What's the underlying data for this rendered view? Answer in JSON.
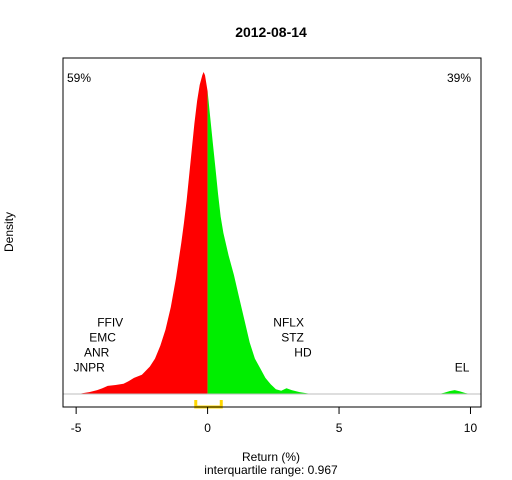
{
  "chart_data": {
    "type": "area",
    "title": "2012-08-14",
    "xlabel": "Return (%)",
    "ylabel": "Density",
    "subtitle": "interquartile range: 0.967",
    "xlim": [
      -5.5,
      10.4
    ],
    "ylim": [
      0,
      1.0
    ],
    "x_ticks": [
      -5,
      0,
      5,
      10
    ],
    "x_tick_labels": [
      "-5",
      "0",
      "5",
      "10"
    ],
    "split_at": 0,
    "density": {
      "x": [
        -4.8,
        -4.5,
        -4.2,
        -4.0,
        -3.8,
        -3.5,
        -3.2,
        -3.0,
        -2.8,
        -2.5,
        -2.2,
        -2.0,
        -1.8,
        -1.6,
        -1.4,
        -1.2,
        -1.0,
        -0.9,
        -0.8,
        -0.7,
        -0.6,
        -0.5,
        -0.4,
        -0.3,
        -0.2,
        -0.15,
        -0.1,
        0.0,
        0.1,
        0.2,
        0.3,
        0.4,
        0.5,
        0.6,
        0.8,
        1.0,
        1.2,
        1.4,
        1.6,
        1.8,
        2.0,
        2.2,
        2.4,
        2.6,
        2.8,
        3.0,
        3.2,
        3.5,
        3.8,
        4.0,
        4.5,
        5.0,
        6.0,
        7.0,
        8.0,
        8.8,
        9.0,
        9.2,
        9.4,
        9.6,
        9.8,
        10.0
      ],
      "y": [
        0.002,
        0.006,
        0.012,
        0.018,
        0.025,
        0.028,
        0.032,
        0.04,
        0.05,
        0.06,
        0.085,
        0.11,
        0.15,
        0.2,
        0.27,
        0.36,
        0.47,
        0.53,
        0.6,
        0.68,
        0.76,
        0.84,
        0.91,
        0.96,
        0.99,
        1.0,
        0.99,
        0.94,
        0.86,
        0.78,
        0.7,
        0.62,
        0.55,
        0.5,
        0.43,
        0.37,
        0.3,
        0.23,
        0.16,
        0.11,
        0.08,
        0.05,
        0.03,
        0.015,
        0.01,
        0.018,
        0.012,
        0.006,
        0.002,
        0.0,
        0.0,
        0.0,
        0.0,
        0.0,
        0.0,
        0.0,
        0.004,
        0.009,
        0.012,
        0.008,
        0.003,
        0.0
      ]
    },
    "negative_share_label": "59%",
    "positive_share_label": "39%",
    "colors": {
      "negative": "#ff0000",
      "positive": "#00ee00",
      "iqr": "#ffd700"
    },
    "iqr": [
      -0.45,
      0.52
    ],
    "stock_labels": [
      {
        "text": "FFIV",
        "x": -4.2,
        "y": 0.21
      },
      {
        "text": "EMC",
        "x": -4.5,
        "y": 0.163
      },
      {
        "text": "ANR",
        "x": -4.7,
        "y": 0.116
      },
      {
        "text": "JNPR",
        "x": -5.1,
        "y": 0.07
      },
      {
        "text": "NFLX",
        "x": 2.5,
        "y": 0.21
      },
      {
        "text": "STZ",
        "x": 2.8,
        "y": 0.163
      },
      {
        "text": "HD",
        "x": 3.3,
        "y": 0.116
      },
      {
        "text": "EL",
        "x": 9.4,
        "y": 0.07
      }
    ]
  }
}
